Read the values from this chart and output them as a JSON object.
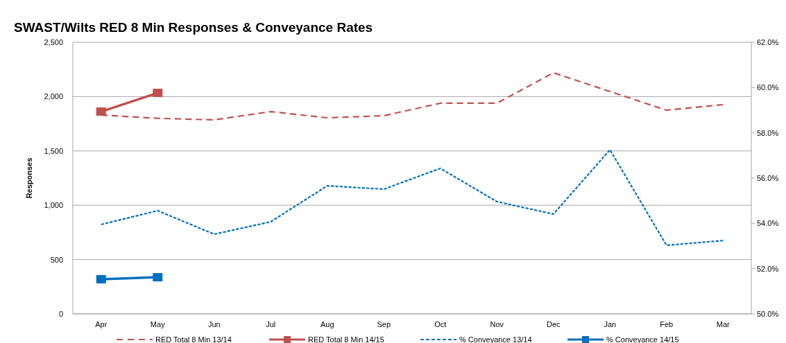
{
  "chart_data": {
    "type": "line",
    "title": "SWAST/Wilts RED 8 Min Responses & Conveyance Rates",
    "ylabel": "Responses",
    "categories": [
      "Apr",
      "May",
      "Jun",
      "Jul",
      "Aug",
      "Sep",
      "Oct",
      "Nov",
      "Dec",
      "Jan",
      "Feb",
      "Mar"
    ],
    "series": [
      {
        "name": "RED Total 8 Min 13/14",
        "color": "#c0504d",
        "line_style": "dashed",
        "marker": "none",
        "values": [
          1830,
          1800,
          1786,
          1862,
          1805,
          1824,
          1939,
          1939,
          2219,
          2047,
          1875,
          1926
        ]
      },
      {
        "name": "RED Total 8 Min 14/15",
        "color": "#c0504d",
        "line_style": "solid",
        "marker": "square",
        "values": [
          1862,
          2034,
          null,
          null,
          null,
          null,
          null,
          null,
          null,
          null,
          null,
          null
        ]
      },
      {
        "name": "% Conveyance 13/14",
        "color": "#0070c0",
        "line_style": "dotted",
        "marker": "none",
        "axis": "y2",
        "values": [
          53.95,
          54.56,
          53.52,
          54.07,
          55.66,
          55.51,
          56.43,
          54.96,
          54.41,
          57.25,
          53.03,
          53.24
        ]
      },
      {
        "name": "% Conveyance 14/15",
        "color": "#0070c0",
        "line_style": "solid",
        "marker": "square",
        "axis": "y2",
        "values": [
          51.53,
          51.62,
          null,
          null,
          null,
          null,
          null,
          null,
          null,
          null,
          null,
          null
        ]
      }
    ],
    "ylim": [
      0,
      2500
    ],
    "yticks": [
      {
        "value": 0,
        "label": "0"
      },
      {
        "value": 500,
        "label": "500"
      },
      {
        "value": 1000,
        "label": "1,000"
      },
      {
        "value": 1500,
        "label": "1,500"
      },
      {
        "value": 2000,
        "label": "2,000"
      },
      {
        "value": 2500,
        "label": "2,500"
      }
    ],
    "y2lim": [
      50,
      62
    ],
    "y2ticks": [
      {
        "value": 50,
        "label": "50.0%"
      },
      {
        "value": 52,
        "label": "52.0%"
      },
      {
        "value": 54,
        "label": "54.0%"
      },
      {
        "value": 56,
        "label": "56.0%"
      },
      {
        "value": 58,
        "label": "58.0%"
      },
      {
        "value": 60,
        "label": "60.0%"
      },
      {
        "value": 62,
        "label": "62.0%"
      }
    ],
    "grid": "y",
    "legend": "bottom"
  }
}
